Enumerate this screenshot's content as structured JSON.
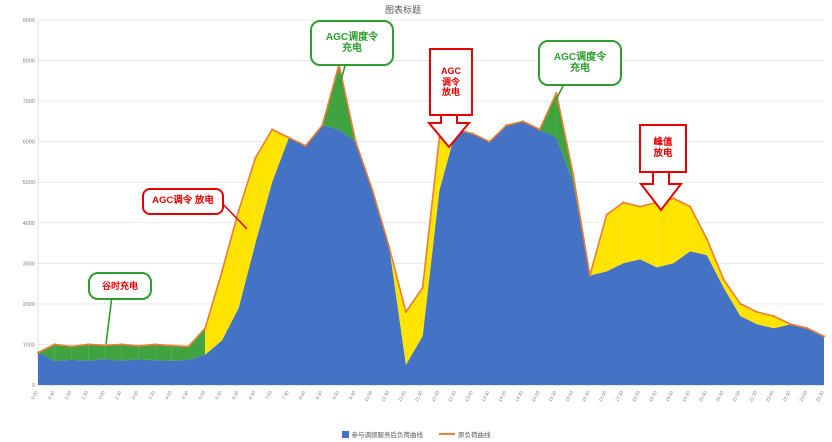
{
  "title": "图表标题",
  "colors": {
    "blue_area": "#4472c4",
    "orange_line": "#ed7d31",
    "charge_green": "#3fa33f",
    "discharge_yellow": "#ffe400",
    "annotation_green": "#2e9e2e",
    "annotation_red": "#e60000"
  },
  "annotations": {
    "valley_charge": {
      "text": "谷时充电"
    },
    "agc_dispatch_discharge": {
      "text": "AGC调令  放电"
    },
    "agc_order_charge_1": {
      "line1": "AGC调度令",
      "line2": "充电"
    },
    "agc_order_discharge": {
      "line1": "AGC",
      "line2": "调令",
      "line3": "放电"
    },
    "agc_order_charge_2": {
      "line1": "AGC调度令",
      "line2": "充电"
    },
    "peak_discharge": {
      "line1": "峰值",
      "line2": "放电"
    }
  },
  "chart_data": {
    "type": "area",
    "title": "图表标题",
    "legend_position": "bottom",
    "grid": true,
    "ylim": [
      0,
      9000
    ],
    "ytick_step": 1000,
    "categories": [
      "0:00",
      "0:30",
      "1:00",
      "1:30",
      "2:00",
      "2:30",
      "3:00",
      "3:30",
      "4:00",
      "4:30",
      "5:00",
      "5:30",
      "6:00",
      "6:30",
      "7:00",
      "7:30",
      "8:00",
      "8:30",
      "9:00",
      "9:30",
      "10:00",
      "10:30",
      "11:00",
      "11:30",
      "12:00",
      "12:30",
      "13:00",
      "13:30",
      "14:00",
      "14:30",
      "15:00",
      "15:30",
      "16:00",
      "16:30",
      "17:00",
      "17:30",
      "18:00",
      "18:30",
      "19:00",
      "19:30",
      "20:00",
      "20:30",
      "21:00",
      "21:30",
      "22:00",
      "22:30",
      "23:00",
      "23:30"
    ],
    "series": [
      {
        "name": "参与调频服务后负荷曲线",
        "color": "#4472c4",
        "style": "area",
        "values": [
          800,
          600,
          620,
          600,
          640,
          600,
          630,
          610,
          600,
          620,
          750,
          1100,
          1900,
          3500,
          5000,
          6100,
          5900,
          6400,
          6300,
          6000,
          4800,
          3400,
          500,
          1200,
          4800,
          6300,
          6200,
          6000,
          6400,
          6500,
          6300,
          6100,
          5000,
          2700,
          2800,
          3000,
          3100,
          2900,
          3000,
          3300,
          3200,
          2400,
          1700,
          1500,
          1400,
          1500,
          1400,
          1200
        ]
      },
      {
        "name": "原负荷曲线",
        "color": "#ed7d31",
        "style": "line",
        "values": [
          800,
          1000,
          950,
          1000,
          980,
          1000,
          960,
          1000,
          970,
          950,
          1400,
          2800,
          4300,
          5600,
          6300,
          6100,
          5900,
          6400,
          7900,
          6000,
          4800,
          3400,
          1800,
          2400,
          6100,
          6300,
          6200,
          6000,
          6400,
          6500,
          6300,
          7200,
          5200,
          2700,
          4200,
          4500,
          4400,
          4500,
          4600,
          4400,
          3600,
          2600,
          2000,
          1800,
          1700,
          1500,
          1400,
          1200
        ]
      }
    ],
    "band_palette": {
      "green": "#3fa33f",
      "yellow": "#ffe400"
    },
    "band_colors": [
      "none",
      "green",
      "green",
      "green",
      "green",
      "green",
      "green",
      "green",
      "green",
      "green",
      "yellow",
      "yellow",
      "yellow",
      "yellow",
      "yellow",
      "none",
      "none",
      "none",
      "green",
      "none",
      "none",
      "none",
      "yellow",
      "yellow",
      "yellow",
      "none",
      "none",
      "none",
      "none",
      "none",
      "none",
      "green",
      "green",
      "none",
      "yellow",
      "yellow",
      "yellow",
      "yellow",
      "yellow",
      "yellow",
      "yellow",
      "yellow",
      "yellow",
      "yellow",
      "yellow",
      "none",
      "none",
      "none"
    ]
  }
}
